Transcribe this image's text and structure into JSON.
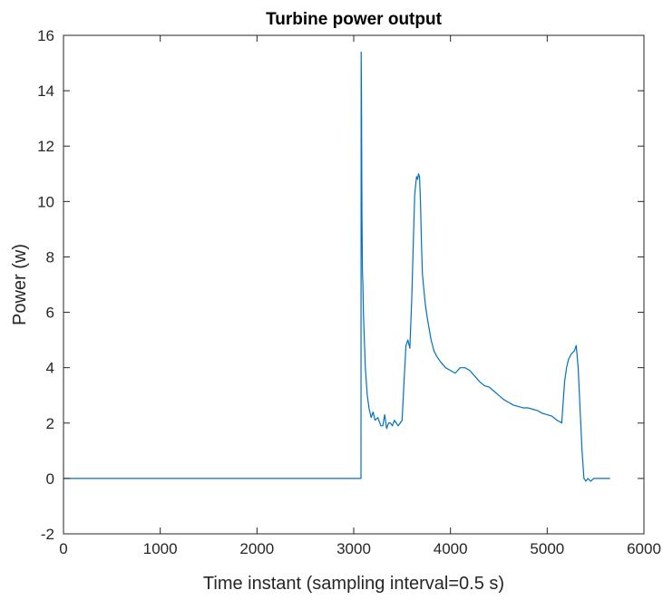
{
  "chart_data": {
    "type": "line",
    "title": "Turbine power output",
    "xlabel": "Time instant (sampling interval=0.5 s)",
    "ylabel": "Power (w)",
    "xlim": [
      0,
      6000
    ],
    "ylim": [
      -2,
      16
    ],
    "xticks": [
      0,
      1000,
      2000,
      3000,
      4000,
      5000,
      6000
    ],
    "yticks": [
      -2,
      0,
      2,
      4,
      6,
      8,
      10,
      12,
      14,
      16
    ],
    "grid": false,
    "line_color": "#0072BD",
    "series": [
      {
        "x": [
          0,
          500,
          1000,
          1500,
          2000,
          2500,
          3000,
          3075,
          3077,
          3080,
          3082,
          3085,
          3090,
          3095,
          3100,
          3110,
          3120,
          3140,
          3160,
          3180,
          3200,
          3220,
          3250,
          3280,
          3300,
          3320,
          3340,
          3360,
          3380,
          3400,
          3420,
          3440,
          3460,
          3480,
          3500,
          3520,
          3540,
          3560,
          3580,
          3600,
          3620,
          3630,
          3640,
          3650,
          3660,
          3670,
          3680,
          3690,
          3700,
          3710,
          3720,
          3740,
          3760,
          3780,
          3800,
          3830,
          3860,
          3900,
          3950,
          4000,
          4050,
          4100,
          4150,
          4200,
          4250,
          4300,
          4350,
          4400,
          4450,
          4500,
          4550,
          4600,
          4650,
          4700,
          4750,
          4800,
          4850,
          4900,
          4950,
          5000,
          5050,
          5100,
          5130,
          5150,
          5160,
          5180,
          5200,
          5220,
          5250,
          5280,
          5300,
          5320,
          5340,
          5360,
          5380,
          5400,
          5420,
          5450,
          5480,
          5500,
          5550,
          5600,
          5650
        ],
        "y": [
          0,
          0,
          0,
          0,
          0,
          0,
          0,
          0,
          15.4,
          14.0,
          12.0,
          9.5,
          7.5,
          7.0,
          6.0,
          5.0,
          4.0,
          3.0,
          2.5,
          2.2,
          2.4,
          2.1,
          2.2,
          1.9,
          1.9,
          2.3,
          1.8,
          2.0,
          2.0,
          1.9,
          2.1,
          2.0,
          1.9,
          2.0,
          2.1,
          3.5,
          4.8,
          5.0,
          4.7,
          6.5,
          9.0,
          10.2,
          10.6,
          10.9,
          10.8,
          11.0,
          10.9,
          10.0,
          8.5,
          7.4,
          7.0,
          6.3,
          5.8,
          5.4,
          5.0,
          4.6,
          4.4,
          4.2,
          4.0,
          3.9,
          3.8,
          4.0,
          4.0,
          3.9,
          3.7,
          3.5,
          3.35,
          3.3,
          3.15,
          3.0,
          2.85,
          2.75,
          2.65,
          2.6,
          2.55,
          2.55,
          2.5,
          2.45,
          2.35,
          2.3,
          2.25,
          2.1,
          2.05,
          2.0,
          2.5,
          3.5,
          4.0,
          4.3,
          4.5,
          4.6,
          4.8,
          4.0,
          2.5,
          1.0,
          0.0,
          -0.1,
          0.0,
          -0.1,
          0.0,
          0.0,
          0.0,
          0.0,
          0.0
        ]
      }
    ]
  }
}
